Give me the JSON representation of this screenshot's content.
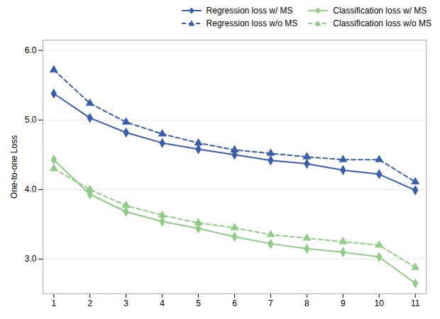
{
  "chart_data": {
    "type": "line",
    "ylabel": "One-to-one Loss",
    "x": [
      1,
      2,
      3,
      4,
      5,
      6,
      7,
      8,
      9,
      10,
      11
    ],
    "series": [
      {
        "name": "Regression loss w/ MS",
        "color": "#3a5eaa",
        "marker": "diamond",
        "line_style": "solid",
        "values": [
          5.38,
          5.03,
          4.82,
          4.67,
          4.58,
          4.5,
          4.42,
          4.37,
          4.28,
          4.22,
          3.99
        ]
      },
      {
        "name": "Regression loss w/o MS",
        "color": "#3a5eaa",
        "marker": "triangle",
        "line_style": "dashed",
        "values": [
          5.72,
          5.24,
          4.97,
          4.8,
          4.67,
          4.57,
          4.52,
          4.47,
          4.43,
          4.43,
          4.11
        ]
      },
      {
        "name": "Classification loss w/ MS",
        "color": "#90cc87",
        "marker": "diamond",
        "line_style": "solid",
        "values": [
          4.43,
          3.93,
          3.68,
          3.54,
          3.44,
          3.32,
          3.22,
          3.15,
          3.1,
          3.03,
          2.65
        ]
      },
      {
        "name": "Classification loss w/o MS",
        "color": "#90cc87",
        "marker": "triangle",
        "line_style": "dashed",
        "values": [
          4.3,
          4.0,
          3.77,
          3.63,
          3.52,
          3.45,
          3.35,
          3.3,
          3.25,
          3.2,
          2.88
        ]
      }
    ],
    "xlim": [
      0.7,
      11.3
    ],
    "xticks": [
      1,
      2,
      3,
      4,
      5,
      6,
      7,
      8,
      9,
      10,
      11
    ],
    "ylim": [
      2.5,
      6.15
    ],
    "yticks": [
      3,
      4,
      5,
      6
    ],
    "grid": "y",
    "legend": "upper right"
  }
}
